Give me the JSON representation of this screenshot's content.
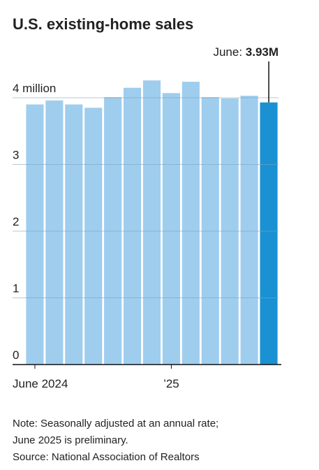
{
  "chart_data": {
    "type": "bar",
    "title": "U.S. existing-home sales",
    "categories": [
      "June 2024",
      null,
      null,
      null,
      null,
      null,
      null,
      "’25",
      null,
      null,
      null,
      null,
      null
    ],
    "values": [
      3.9,
      3.96,
      3.9,
      3.85,
      4.01,
      4.15,
      4.26,
      4.07,
      4.24,
      4.01,
      3.99,
      4.03,
      3.93
    ],
    "color": "#9fcdee",
    "highlight_color": "#1a91d2",
    "annotation": {
      "text": "June:",
      "value_label": "3.93M"
    },
    "ylim": [
      0,
      4.5
    ],
    "yticks": [
      0,
      1,
      2,
      3,
      {
        "value": 4,
        "label": "4 million"
      }
    ],
    "grid": true,
    "notes": [
      "Note: Seasonally adjusted at an annual rate;",
      "June 2025 is preliminary.",
      "Source: National Association of Realtors"
    ]
  }
}
